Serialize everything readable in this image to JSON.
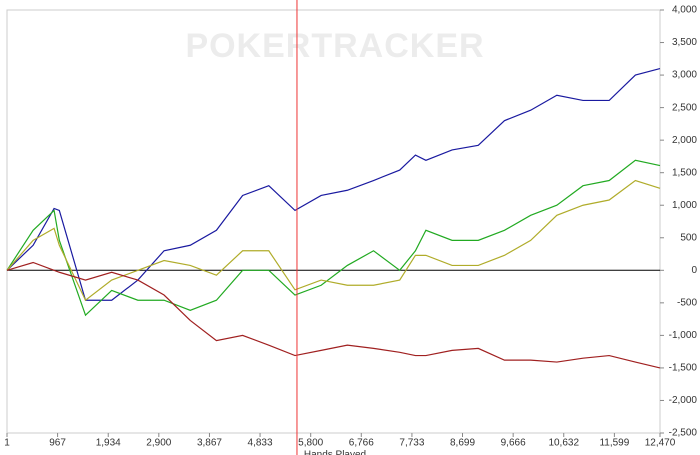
{
  "chart_data": {
    "type": "line",
    "watermark": "POKERTRACKER",
    "x_label": "Hands Played",
    "x": [
      1,
      500,
      900,
      1000,
      1500,
      2000,
      2500,
      3000,
      3500,
      4000,
      4500,
      5000,
      5500,
      6000,
      6500,
      7000,
      7500,
      7800,
      8000,
      8500,
      9000,
      9500,
      10000,
      10500,
      11000,
      11500,
      12000,
      12470
    ],
    "series": [
      {
        "color": "#1a1aa0",
        "values": [
          0,
          385,
          950,
          920,
          -460,
          -460,
          -150,
          300,
          385,
          615,
          1150,
          1300,
          920,
          1150,
          1230,
          1380,
          1540,
          1770,
          1690,
          1850,
          1920,
          2300,
          2460,
          2690,
          2610,
          2610,
          3000,
          3100
        ]
      },
      {
        "color": "#22aa22",
        "values": [
          0,
          615,
          920,
          460,
          -690,
          -310,
          -460,
          -460,
          -615,
          -460,
          0,
          0,
          -380,
          -230,
          75,
          300,
          0,
          300,
          615,
          460,
          460,
          615,
          845,
          1000,
          1300,
          1380,
          1690,
          1610
        ]
      },
      {
        "color": "#b0ac2a",
        "values": [
          0,
          460,
          645,
          385,
          -460,
          -150,
          0,
          150,
          75,
          -75,
          300,
          300,
          -300,
          -150,
          -230,
          -230,
          -150,
          230,
          230,
          75,
          75,
          230,
          460,
          845,
          1000,
          1080,
          1380,
          1260
        ]
      },
      {
        "color": "#a02020",
        "values": [
          0,
          120,
          0,
          -30,
          -150,
          -30,
          -150,
          -380,
          -770,
          -1080,
          -1000,
          -1150,
          -1310,
          -1230,
          -1150,
          -1200,
          -1260,
          -1310,
          -1310,
          -1230,
          -1200,
          -1380,
          -1380,
          -1410,
          -1350,
          -1310,
          -1410,
          -1500
        ]
      }
    ],
    "xlim": [
      1,
      12470
    ],
    "xticks": [
      1,
      967,
      {
        "value": 1934,
        "label": "1,934"
      },
      {
        "value": 2900,
        "label": "2,900"
      },
      {
        "value": 3867,
        "label": "3,867"
      },
      {
        "value": 4833,
        "label": "4,833"
      },
      {
        "value": 5800,
        "label": "5,800"
      },
      {
        "value": 6766,
        "label": "6,766"
      },
      {
        "value": 7733,
        "label": "7,733"
      },
      {
        "value": 8699,
        "label": "8,699"
      },
      {
        "value": 9666,
        "label": "9,666"
      },
      {
        "value": 10632,
        "label": "10,632"
      },
      {
        "value": 11599,
        "label": "11,599"
      },
      {
        "value": 12470,
        "label": "12,470"
      }
    ],
    "ylim": [
      -2500,
      4000
    ],
    "yticks": [
      {
        "value": -2500,
        "label": "-2,500"
      },
      {
        "value": -2000,
        "label": "-2,000"
      },
      {
        "value": -1500,
        "label": "-1,500"
      },
      {
        "value": -1000,
        "label": "-1,000"
      },
      -500,
      0,
      500,
      {
        "value": 1000,
        "label": "1,000"
      },
      {
        "value": 1500,
        "label": "1,500"
      },
      {
        "value": 2000,
        "label": "2,000"
      },
      {
        "value": 2500,
        "label": "2,500"
      },
      {
        "value": 3000,
        "label": "3,000"
      },
      {
        "value": 3500,
        "label": "3,500"
      },
      {
        "value": 4000,
        "label": "4,000"
      }
    ],
    "cursor_x": 5538,
    "cursor_color": "#ee3333",
    "zero_line": true
  }
}
